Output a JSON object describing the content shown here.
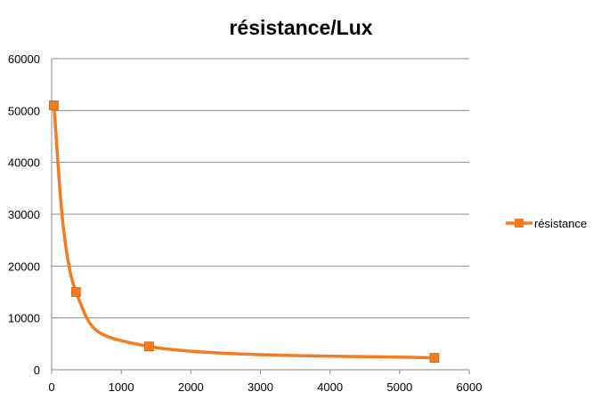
{
  "chart_data": {
    "type": "scatter",
    "title": "résistance/Lux",
    "xlabel": "",
    "ylabel": "",
    "xlim": [
      0,
      6000
    ],
    "ylim": [
      0,
      60000
    ],
    "x_ticks": [
      0,
      1000,
      2000,
      3000,
      4000,
      5000,
      6000
    ],
    "y_ticks": [
      0,
      10000,
      20000,
      30000,
      40000,
      50000,
      60000
    ],
    "grid": "horizontal major gridlines",
    "legend_position": "right",
    "smooth_lines": true,
    "marker": "square",
    "series": [
      {
        "name": "résistance",
        "color": "#F47B20",
        "x": [
          30,
          350,
          1400,
          5500
        ],
        "y": [
          51000,
          15000,
          4500,
          2300
        ]
      }
    ]
  }
}
